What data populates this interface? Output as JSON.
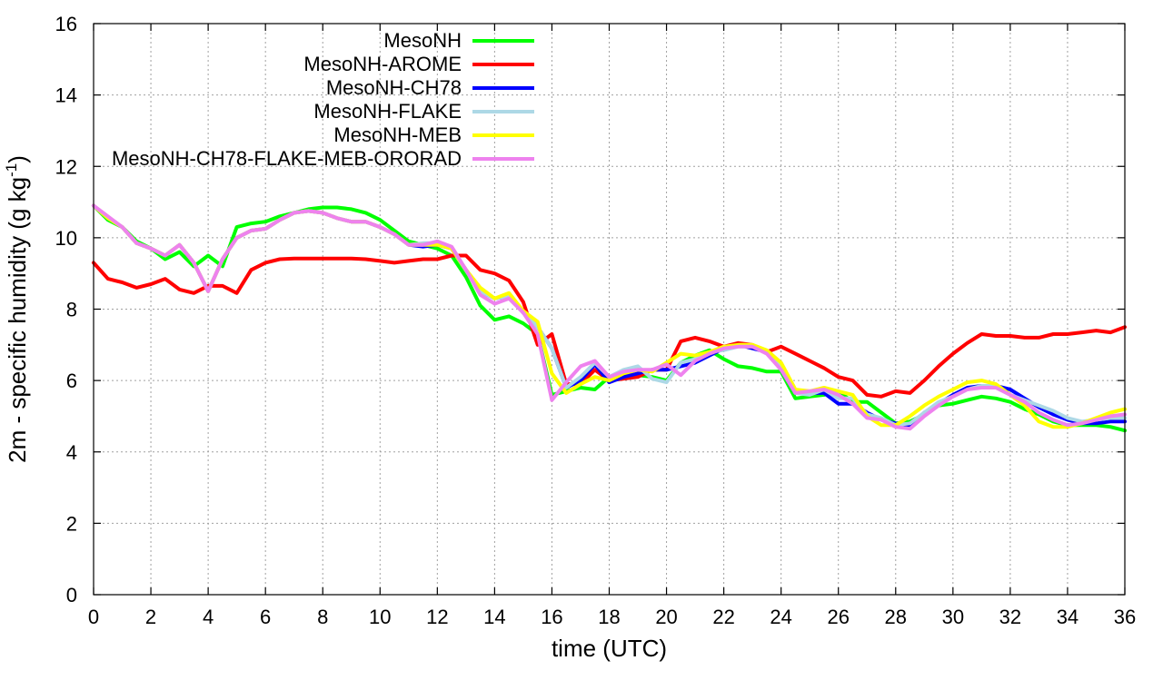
{
  "chart_data": {
    "type": "line",
    "xlabel": "time (UTC)",
    "ylabel": {
      "main": "2m - specific humidity (g kg",
      "sup": "-1",
      "tail": ")"
    },
    "xlim": [
      0,
      36
    ],
    "ylim": [
      0,
      16
    ],
    "xticks": [
      0,
      2,
      4,
      6,
      8,
      10,
      12,
      14,
      16,
      18,
      20,
      22,
      24,
      26,
      28,
      30,
      32,
      34,
      36
    ],
    "yticks": [
      0,
      2,
      4,
      6,
      8,
      10,
      12,
      14,
      16
    ],
    "grid": true,
    "legend_position": "top-left",
    "x": [
      0,
      0.5,
      1,
      1.5,
      2,
      2.5,
      3,
      3.5,
      4,
      4.5,
      5,
      5.5,
      6,
      6.5,
      7,
      7.5,
      8,
      8.5,
      9,
      9.5,
      10,
      10.5,
      11,
      11.5,
      12,
      12.5,
      13,
      13.5,
      14,
      14.5,
      15,
      15.5,
      16,
      16.5,
      17,
      17.5,
      18,
      18.5,
      19,
      19.5,
      20,
      20.5,
      21,
      21.5,
      22,
      22.5,
      23,
      23.5,
      24,
      24.5,
      25,
      25.5,
      26,
      26.5,
      27,
      27.5,
      28,
      28.5,
      29,
      29.5,
      30,
      30.5,
      31,
      31.5,
      32,
      32.5,
      33,
      33.5,
      34,
      34.5,
      35,
      35.5,
      36
    ],
    "series": [
      {
        "name": "MesoNH",
        "color": "#00ff00",
        "values": [
          10.9,
          10.5,
          10.3,
          9.9,
          9.7,
          9.4,
          9.6,
          9.2,
          9.5,
          9.2,
          10.3,
          10.4,
          10.45,
          10.6,
          10.7,
          10.8,
          10.85,
          10.85,
          10.8,
          10.7,
          10.5,
          10.2,
          9.9,
          9.8,
          9.7,
          9.5,
          8.9,
          8.1,
          7.7,
          7.8,
          7.6,
          7.3,
          5.6,
          5.7,
          5.8,
          5.75,
          6.1,
          6.2,
          6.15,
          6.1,
          6.0,
          6.5,
          6.7,
          6.85,
          6.6,
          6.4,
          6.35,
          6.25,
          6.25,
          5.5,
          5.55,
          5.6,
          5.7,
          5.4,
          5.4,
          5.1,
          4.8,
          4.85,
          5.05,
          5.3,
          5.35,
          5.45,
          5.55,
          5.5,
          5.4,
          5.2,
          5.05,
          4.85,
          4.75,
          4.75,
          4.75,
          4.7,
          4.6
        ]
      },
      {
        "name": "MesoNH-AROME",
        "color": "#ff0000",
        "values": [
          9.3,
          8.85,
          8.75,
          8.6,
          8.7,
          8.85,
          8.55,
          8.45,
          8.65,
          8.65,
          8.45,
          9.1,
          9.3,
          9.4,
          9.42,
          9.42,
          9.42,
          9.42,
          9.42,
          9.4,
          9.35,
          9.3,
          9.35,
          9.4,
          9.4,
          9.5,
          9.5,
          9.1,
          9.0,
          8.8,
          8.2,
          7.0,
          7.3,
          5.9,
          5.9,
          6.3,
          6.0,
          6.05,
          6.1,
          6.3,
          6.3,
          7.1,
          7.2,
          7.1,
          6.95,
          7.05,
          7.0,
          6.8,
          6.95,
          6.75,
          6.55,
          6.35,
          6.1,
          6.0,
          5.6,
          5.55,
          5.7,
          5.65,
          6.0,
          6.4,
          6.75,
          7.05,
          7.3,
          7.25,
          7.25,
          7.2,
          7.2,
          7.3,
          7.3,
          7.35,
          7.4,
          7.35,
          7.5
        ]
      },
      {
        "name": "MesoNH-CH78",
        "color": "#0000ff",
        "values": [
          10.9,
          10.55,
          10.3,
          9.85,
          9.7,
          9.5,
          9.8,
          9.3,
          8.5,
          9.4,
          10.0,
          10.2,
          10.25,
          10.5,
          10.7,
          10.75,
          10.7,
          10.55,
          10.45,
          10.45,
          10.3,
          10.1,
          9.8,
          9.75,
          9.8,
          9.7,
          9.1,
          8.5,
          8.3,
          8.35,
          7.9,
          7.5,
          6.9,
          5.8,
          6.0,
          6.45,
          5.95,
          6.1,
          6.2,
          6.3,
          6.3,
          6.4,
          6.5,
          6.7,
          6.9,
          7.0,
          6.9,
          6.8,
          6.3,
          5.65,
          5.65,
          5.65,
          5.35,
          5.35,
          5.1,
          4.9,
          4.8,
          4.75,
          5.1,
          5.35,
          5.6,
          5.8,
          5.85,
          5.85,
          5.75,
          5.5,
          5.25,
          5.05,
          4.9,
          4.8,
          4.8,
          4.85,
          4.85
        ]
      },
      {
        "name": "MesoNH-FLAKE",
        "color": "#add8e6",
        "values": [
          10.9,
          10.55,
          10.3,
          9.85,
          9.7,
          9.5,
          9.8,
          9.3,
          8.5,
          9.4,
          10.0,
          10.2,
          10.25,
          10.5,
          10.7,
          10.75,
          10.7,
          10.55,
          10.45,
          10.45,
          10.3,
          10.1,
          9.8,
          9.85,
          9.85,
          9.7,
          9.1,
          8.5,
          8.3,
          8.35,
          7.9,
          7.5,
          6.9,
          5.8,
          6.1,
          6.5,
          6.1,
          6.3,
          6.4,
          6.05,
          5.95,
          6.5,
          6.6,
          6.8,
          6.85,
          6.95,
          6.95,
          6.8,
          6.35,
          5.65,
          5.6,
          5.75,
          5.5,
          5.5,
          5.05,
          4.95,
          4.75,
          4.8,
          5.1,
          5.4,
          5.55,
          5.75,
          5.85,
          5.85,
          5.6,
          5.45,
          5.3,
          5.15,
          4.95,
          4.85,
          4.9,
          4.95,
          4.95
        ]
      },
      {
        "name": "MesoNH-MEB",
        "color": "#ffff00",
        "values": [
          10.9,
          10.55,
          10.3,
          9.85,
          9.7,
          9.5,
          9.8,
          9.3,
          8.5,
          9.4,
          10.0,
          10.2,
          10.25,
          10.5,
          10.7,
          10.75,
          10.7,
          10.55,
          10.45,
          10.45,
          10.3,
          10.1,
          9.8,
          9.8,
          9.8,
          9.7,
          9.1,
          8.6,
          8.3,
          8.45,
          7.95,
          7.65,
          6.2,
          5.65,
          5.9,
          6.1,
          6.0,
          6.2,
          6.3,
          6.25,
          6.5,
          6.75,
          6.7,
          6.8,
          6.95,
          7.0,
          7.0,
          6.85,
          6.5,
          5.75,
          5.7,
          5.8,
          5.7,
          5.6,
          5.0,
          4.75,
          4.75,
          5.0,
          5.3,
          5.55,
          5.75,
          5.95,
          6.0,
          5.9,
          5.6,
          5.3,
          4.85,
          4.7,
          4.7,
          4.8,
          4.95,
          5.1,
          5.2
        ]
      },
      {
        "name": "MesoNH-CH78-FLAKE-MEB-ORORAD",
        "color": "#ee82ee",
        "values": [
          10.9,
          10.6,
          10.3,
          9.85,
          9.7,
          9.5,
          9.8,
          9.3,
          8.5,
          9.4,
          10.0,
          10.2,
          10.25,
          10.5,
          10.7,
          10.75,
          10.7,
          10.55,
          10.45,
          10.45,
          10.3,
          10.1,
          9.8,
          9.8,
          9.9,
          9.75,
          9.1,
          8.4,
          8.15,
          8.3,
          7.9,
          7.3,
          5.45,
          5.95,
          6.4,
          6.55,
          6.1,
          6.25,
          6.3,
          6.3,
          6.45,
          6.15,
          6.55,
          6.75,
          6.9,
          6.95,
          6.95,
          6.75,
          6.3,
          5.65,
          5.7,
          5.75,
          5.6,
          5.35,
          4.95,
          4.9,
          4.7,
          4.65,
          5.0,
          5.3,
          5.55,
          5.75,
          5.8,
          5.8,
          5.6,
          5.4,
          5.1,
          4.9,
          4.75,
          4.8,
          4.9,
          5.0,
          5.05
        ]
      }
    ]
  }
}
